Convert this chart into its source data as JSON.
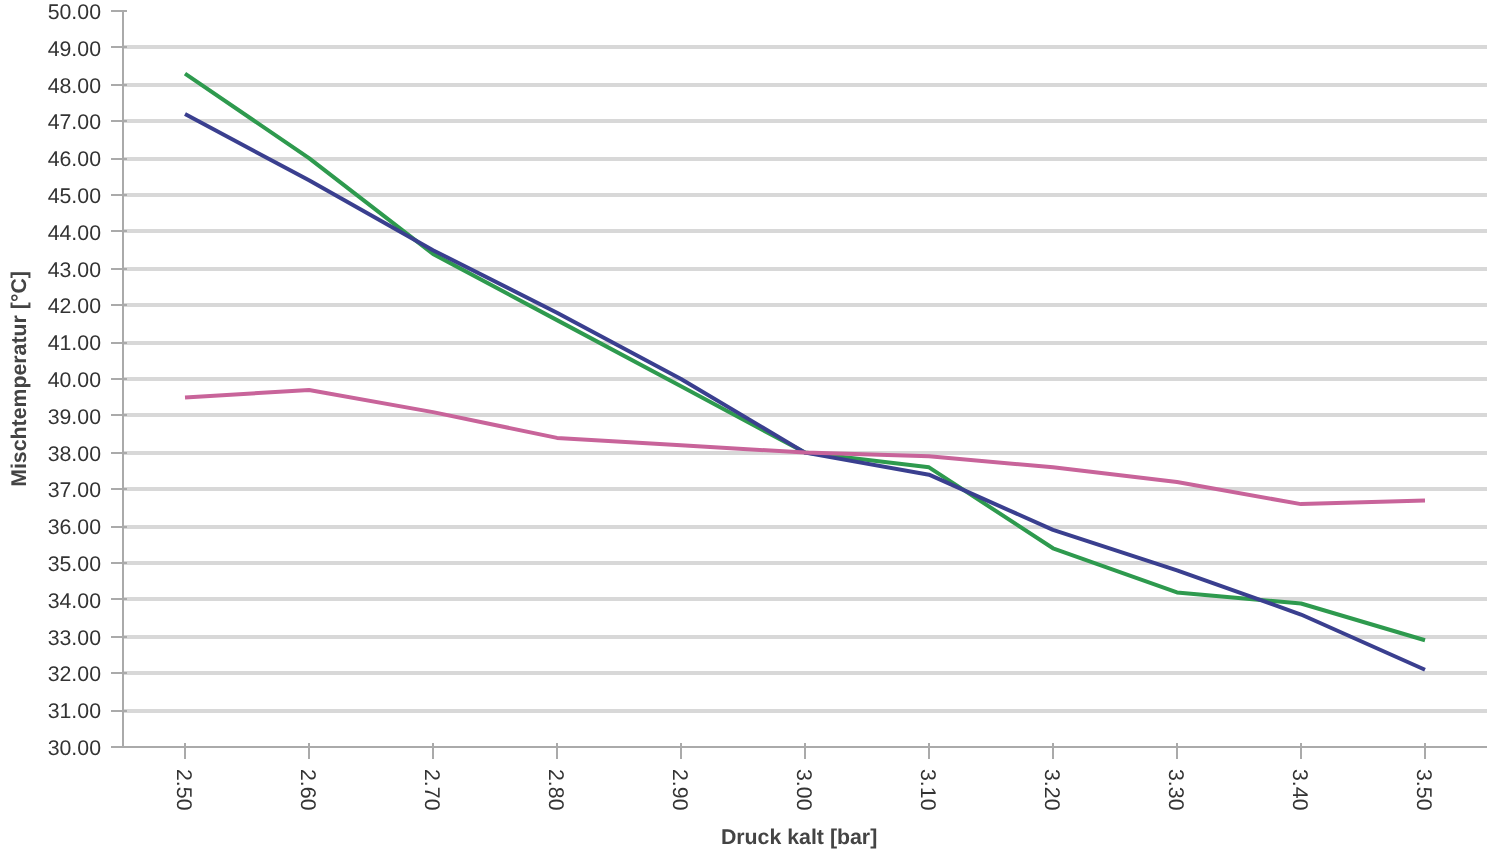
{
  "chart_data": {
    "type": "line",
    "xlabel": "Druck  kalt  [bar]",
    "ylabel": "Mischtemperatur [°C]",
    "categories": [
      "2.50",
      "2.60",
      "2.70",
      "2.80",
      "2.90",
      "3.00",
      "3.10",
      "3.20",
      "3.30",
      "3.40",
      "3.50"
    ],
    "series": [
      {
        "color": "#2e9a4e",
        "values": [
          48.3,
          46.0,
          43.4,
          41.6,
          39.8,
          38.0,
          37.6,
          35.4,
          34.2,
          33.9,
          32.9
        ]
      },
      {
        "color": "#3a3f8f",
        "values": [
          47.2,
          45.4,
          43.5,
          41.8,
          40.0,
          38.0,
          37.4,
          35.9,
          34.8,
          33.6,
          32.1
        ]
      },
      {
        "color": "#c8649a",
        "values": [
          39.5,
          39.7,
          39.1,
          38.4,
          38.2,
          38.0,
          37.9,
          37.6,
          37.2,
          36.6,
          36.7
        ]
      }
    ],
    "ylim": [
      30,
      50
    ],
    "yticks": [
      {
        "value": 30,
        "label": "30.00"
      },
      {
        "value": 31,
        "label": "31.00"
      },
      {
        "value": 32,
        "label": "32.00"
      },
      {
        "value": 33,
        "label": "33.00"
      },
      {
        "value": 34,
        "label": "34.00"
      },
      {
        "value": 35,
        "label": "35.00"
      },
      {
        "value": 36,
        "label": "36.00"
      },
      {
        "value": 37,
        "label": "37.00"
      },
      {
        "value": 38,
        "label": "38.00"
      },
      {
        "value": 39,
        "label": "39.00"
      },
      {
        "value": 40,
        "label": "40.00"
      },
      {
        "value": 41,
        "label": "41.00"
      },
      {
        "value": 42,
        "label": "42.00"
      },
      {
        "value": 43,
        "label": "43.00"
      },
      {
        "value": 44,
        "label": "44.00"
      },
      {
        "value": 45,
        "label": "45.00"
      },
      {
        "value": 46,
        "label": "46.00"
      },
      {
        "value": 47,
        "label": "47.00"
      },
      {
        "value": 48,
        "label": "48.00"
      },
      {
        "value": 49,
        "label": "49.00"
      },
      {
        "value": 50,
        "label": "50.00"
      }
    ],
    "grid": "y",
    "marker": "none",
    "line_style": "solid"
  }
}
